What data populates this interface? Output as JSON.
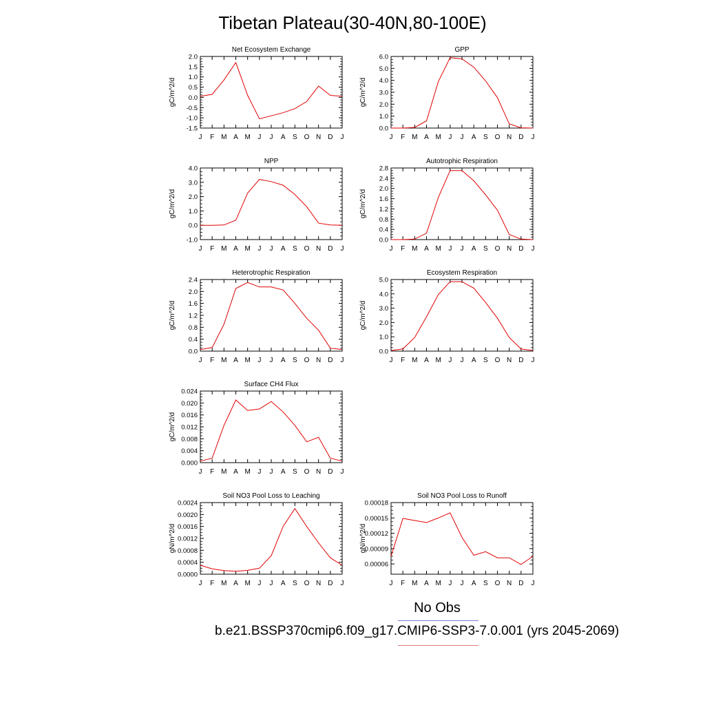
{
  "title": "Tibetan Plateau(30-40N,80-100E)",
  "legend": {
    "obs_label": "No Obs",
    "case_label": "b.e21.BSSP370cmip6.f09_g17.CMIP6-SSP3-7.0.001 (yrs 2045-2069)",
    "obs_color": "#7b7bd6",
    "case_color": "#e07b7b"
  },
  "line_color": "#e00000",
  "chart_data": [
    {
      "type": "line",
      "title": "Net Ecosystem Exchange",
      "ylabel": "gC/m^2/d",
      "categories": [
        "J",
        "F",
        "M",
        "A",
        "M",
        "J",
        "J",
        "A",
        "S",
        "O",
        "N",
        "D",
        "J"
      ],
      "values": [
        0.05,
        0.15,
        0.85,
        1.7,
        0.1,
        -1.05,
        -0.9,
        -0.75,
        -0.55,
        -0.2,
        0.55,
        0.1,
        0.05
      ],
      "ylim": [
        -1.5,
        2.0
      ],
      "yticks": [
        -1.5,
        -1.0,
        -0.5,
        0.0,
        0.5,
        1.0,
        1.5,
        2.0
      ],
      "ytick_labels": [
        "-1.5",
        "-1.0",
        "-0.5",
        "0.0",
        "0.5",
        "1.0",
        "1.5",
        "2.0"
      ]
    },
    {
      "type": "line",
      "title": "GPP",
      "ylabel": "gC/m^2/d",
      "categories": [
        "J",
        "F",
        "M",
        "A",
        "M",
        "J",
        "J",
        "A",
        "S",
        "O",
        "N",
        "D",
        "J"
      ],
      "values": [
        0.0,
        0.0,
        0.05,
        0.6,
        3.9,
        5.9,
        5.8,
        5.1,
        3.95,
        2.55,
        0.35,
        0.02,
        0.0
      ],
      "ylim": [
        0.0,
        6.0
      ],
      "yticks": [
        0.0,
        1.0,
        2.0,
        3.0,
        4.0,
        5.0,
        6.0
      ],
      "ytick_labels": [
        "0.0",
        "1.0",
        "2.0",
        "3.0",
        "4.0",
        "5.0",
        "6.0"
      ]
    },
    {
      "type": "line",
      "title": "NPP",
      "ylabel": "gC/m^2/d",
      "categories": [
        "J",
        "F",
        "M",
        "A",
        "M",
        "J",
        "J",
        "A",
        "S",
        "O",
        "N",
        "D",
        "J"
      ],
      "values": [
        0.0,
        0.0,
        0.02,
        0.35,
        2.25,
        3.2,
        3.05,
        2.8,
        2.15,
        1.3,
        0.15,
        0.02,
        0.0
      ],
      "ylim": [
        -1.0,
        4.0
      ],
      "yticks": [
        -1.0,
        0.0,
        1.0,
        2.0,
        3.0,
        4.0
      ],
      "ytick_labels": [
        "-1.0",
        "0.0",
        "1.0",
        "2.0",
        "3.0",
        "4.0"
      ]
    },
    {
      "type": "line",
      "title": "Autotrophic Respiration",
      "ylabel": "gC/m^2/d",
      "categories": [
        "J",
        "F",
        "M",
        "A",
        "M",
        "J",
        "J",
        "A",
        "S",
        "O",
        "N",
        "D",
        "J"
      ],
      "values": [
        0.0,
        0.0,
        0.02,
        0.25,
        1.65,
        2.7,
        2.7,
        2.3,
        1.75,
        1.15,
        0.2,
        0.02,
        0.0
      ],
      "ylim": [
        0.0,
        2.8
      ],
      "yticks": [
        0.0,
        0.4,
        0.8,
        1.2,
        1.6,
        2.0,
        2.4,
        2.8
      ],
      "ytick_labels": [
        "0.0",
        "0.4",
        "0.8",
        "1.2",
        "1.6",
        "2.0",
        "2.4",
        "2.8"
      ]
    },
    {
      "type": "line",
      "title": "Heterotrophic Respiration",
      "ylabel": "gC/m^2/d",
      "categories": [
        "J",
        "F",
        "M",
        "A",
        "M",
        "J",
        "J",
        "A",
        "S",
        "O",
        "N",
        "D",
        "J"
      ],
      "values": [
        0.05,
        0.12,
        0.9,
        2.1,
        2.3,
        2.15,
        2.15,
        2.05,
        1.6,
        1.1,
        0.7,
        0.1,
        0.05
      ],
      "ylim": [
        0.0,
        2.4
      ],
      "yticks": [
        0.0,
        0.4,
        0.8,
        1.2,
        1.6,
        2.0,
        2.4
      ],
      "ytick_labels": [
        "0.0",
        "0.4",
        "0.8",
        "1.2",
        "1.6",
        "2.0",
        "2.4"
      ]
    },
    {
      "type": "line",
      "title": "Ecosystem Respiration",
      "ylabel": "gC/m^2/d",
      "categories": [
        "J",
        "F",
        "M",
        "A",
        "M",
        "J",
        "J",
        "A",
        "S",
        "O",
        "N",
        "D",
        "J"
      ],
      "values": [
        0.05,
        0.15,
        0.95,
        2.4,
        3.95,
        4.85,
        4.85,
        4.4,
        3.4,
        2.3,
        0.95,
        0.15,
        0.05
      ],
      "ylim": [
        0.0,
        5.0
      ],
      "yticks": [
        0.0,
        1.0,
        2.0,
        3.0,
        4.0,
        5.0
      ],
      "ytick_labels": [
        "0.0",
        "1.0",
        "2.0",
        "3.0",
        "4.0",
        "5.0"
      ]
    },
    {
      "type": "line",
      "title": "Surface CH4 Flux",
      "ylabel": "gC/m^2/d",
      "categories": [
        "J",
        "F",
        "M",
        "A",
        "M",
        "J",
        "J",
        "A",
        "S",
        "O",
        "N",
        "D",
        "J"
      ],
      "values": [
        0.0005,
        0.0015,
        0.0125,
        0.021,
        0.0175,
        0.018,
        0.0205,
        0.017,
        0.0125,
        0.007,
        0.0085,
        0.0015,
        0.0005
      ],
      "ylim": [
        0.0,
        0.024
      ],
      "yticks": [
        0.0,
        0.004,
        0.008,
        0.012,
        0.016,
        0.02,
        0.024
      ],
      "ytick_labels": [
        "0.000",
        "0.004",
        "0.008",
        "0.012",
        "0.016",
        "0.020",
        "0.024"
      ]
    },
    {
      "type": "line",
      "title": "Soil NO3 Pool Loss to Leaching",
      "ylabel": "gN/m^2/d",
      "categories": [
        "J",
        "F",
        "M",
        "A",
        "M",
        "J",
        "J",
        "A",
        "S",
        "O",
        "N",
        "D",
        "J"
      ],
      "values": [
        0.0003,
        0.00018,
        0.00012,
        0.0001,
        0.00013,
        0.0002,
        0.00062,
        0.0016,
        0.0022,
        0.0016,
        0.00105,
        0.00055,
        0.0003
      ],
      "ylim": [
        0.0,
        0.0024
      ],
      "yticks": [
        0.0,
        0.0004,
        0.0008,
        0.0012,
        0.0016,
        0.002,
        0.0024
      ],
      "ytick_labels": [
        "0.0000",
        "0.0004",
        "0.0008",
        "0.0012",
        "0.0016",
        "0.0020",
        "0.0024"
      ]
    },
    {
      "type": "line",
      "title": "Soil NO3 Pool Loss to Runoff",
      "ylabel": "gN/m^2/d",
      "categories": [
        "J",
        "F",
        "M",
        "A",
        "M",
        "J",
        "J",
        "A",
        "S",
        "O",
        "N",
        "D",
        "J"
      ],
      "values": [
        7.5e-05,
        0.000149,
        0.000145,
        0.000141,
        0.00015,
        0.00016,
        0.000112,
        7.7e-05,
        8.4e-05,
        7.2e-05,
        7.2e-05,
        5.9e-05,
        7.5e-05
      ],
      "ylim": [
        4e-05,
        0.00018
      ],
      "yticks": [
        6e-05,
        9e-05,
        0.00012,
        0.00015,
        0.00018
      ],
      "ytick_labels": [
        "0.00006",
        "0.00009",
        "0.00012",
        "0.00015",
        "0.00018"
      ]
    }
  ]
}
